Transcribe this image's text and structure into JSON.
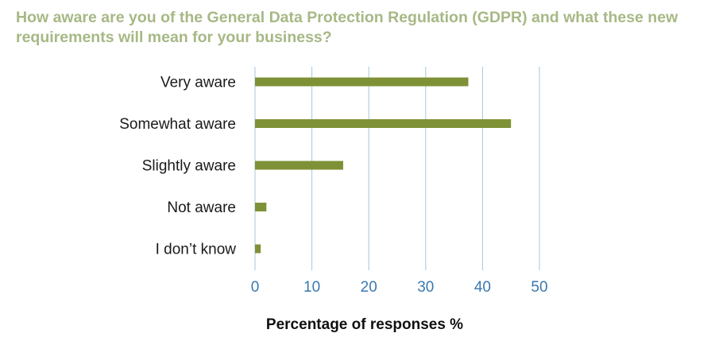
{
  "chart_data": {
    "type": "bar",
    "orientation": "horizontal",
    "title": "How aware are you of the General Data Protection Regulation (GDPR) and what these new requirements will mean for your business?",
    "categories": [
      "Very aware",
      "Somewhat aware",
      "Slightly aware",
      "Not aware",
      "I don’t know"
    ],
    "values": [
      37.5,
      45,
      15.5,
      2,
      1
    ],
    "xlabel": "Percentage of responses %",
    "ylabel": "",
    "xlim": [
      0,
      50
    ],
    "xticks": [
      "0",
      "10",
      "20",
      "30",
      "40",
      "50"
    ],
    "grid": "vertical",
    "legend": "none",
    "colors": {
      "bar": "#7f9136",
      "grid": "#a9c4dc",
      "tick_text": "#3a79b0",
      "title_text": "#a7b885"
    }
  }
}
